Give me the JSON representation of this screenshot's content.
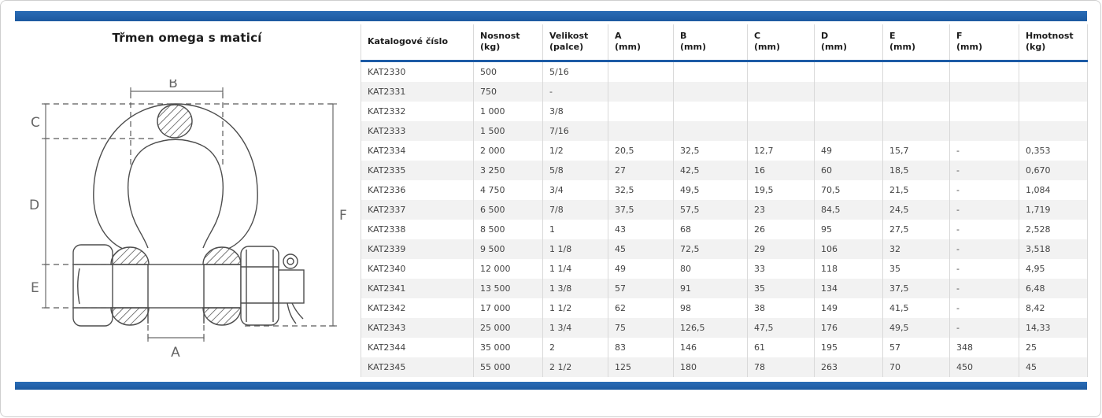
{
  "panel": {
    "title": "Třmen omega s maticí"
  },
  "drawing": {
    "labels": {
      "A": "A",
      "B": "B",
      "C": "C",
      "D": "D",
      "E": "E",
      "F": "F"
    }
  },
  "table": {
    "columns": [
      {
        "line1": "Katalogové číslo",
        "line2": ""
      },
      {
        "line1": "Nosnost",
        "line2": "(kg)"
      },
      {
        "line1": "Velikost",
        "line2": "(palce)"
      },
      {
        "line1": "A",
        "line2": "(mm)"
      },
      {
        "line1": "B",
        "line2": "(mm)"
      },
      {
        "line1": "C",
        "line2": "(mm)"
      },
      {
        "line1": "D",
        "line2": "(mm)"
      },
      {
        "line1": "E",
        "line2": "(mm)"
      },
      {
        "line1": "F",
        "line2": "(mm)"
      },
      {
        "line1": "Hmotnost",
        "line2": "(kg)"
      }
    ],
    "rows": [
      [
        "KAT2330",
        "500",
        "5/16",
        "",
        "",
        "",
        "",
        "",
        "",
        ""
      ],
      [
        "KAT2331",
        "750",
        "-",
        "",
        "",
        "",
        "",
        "",
        "",
        ""
      ],
      [
        "KAT2332",
        "1 000",
        "3/8",
        "",
        "",
        "",
        "",
        "",
        "",
        ""
      ],
      [
        "KAT2333",
        "1 500",
        "7/16",
        "",
        "",
        "",
        "",
        "",
        "",
        ""
      ],
      [
        "KAT2334",
        "2 000",
        "1/2",
        "20,5",
        "32,5",
        "12,7",
        "49",
        "15,7",
        "-",
        "0,353"
      ],
      [
        "KAT2335",
        "3 250",
        "5/8",
        "27",
        "42,5",
        "16",
        "60",
        "18,5",
        "-",
        "0,670"
      ],
      [
        "KAT2336",
        "4 750",
        "3/4",
        "32,5",
        "49,5",
        "19,5",
        "70,5",
        "21,5",
        "-",
        "1,084"
      ],
      [
        "KAT2337",
        "6 500",
        "7/8",
        "37,5",
        "57,5",
        "23",
        "84,5",
        "24,5",
        "-",
        "1,719"
      ],
      [
        "KAT2338",
        "8 500",
        "1",
        "43",
        "68",
        "26",
        "95",
        "27,5",
        "-",
        "2,528"
      ],
      [
        "KAT2339",
        "9 500",
        "1 1/8",
        "45",
        "72,5",
        "29",
        "106",
        "32",
        "-",
        "3,518"
      ],
      [
        "KAT2340",
        "12 000",
        "1 1/4",
        "49",
        "80",
        "33",
        "118",
        "35",
        "-",
        "4,95"
      ],
      [
        "KAT2341",
        "13 500",
        "1 3/8",
        "57",
        "91",
        "35",
        "134",
        "37,5",
        "-",
        "6,48"
      ],
      [
        "KAT2342",
        "17 000",
        "1 1/2",
        "62",
        "98",
        "38",
        "149",
        "41,5",
        "-",
        "8,42"
      ],
      [
        "KAT2343",
        "25 000",
        "1 3/4",
        "75",
        "126,5",
        "47,5",
        "176",
        "49,5",
        "-",
        "14,33"
      ],
      [
        "KAT2344",
        "35 000",
        "2",
        "83",
        "146",
        "61",
        "195",
        "57",
        "348",
        "25"
      ],
      [
        "KAT2345",
        "55 000",
        "2 1/2",
        "125",
        "180",
        "78",
        "263",
        "70",
        "450",
        "45"
      ]
    ]
  },
  "colors": {
    "accent_blue": "#1d5ba6",
    "row_stripe": "#f2f2f2"
  }
}
